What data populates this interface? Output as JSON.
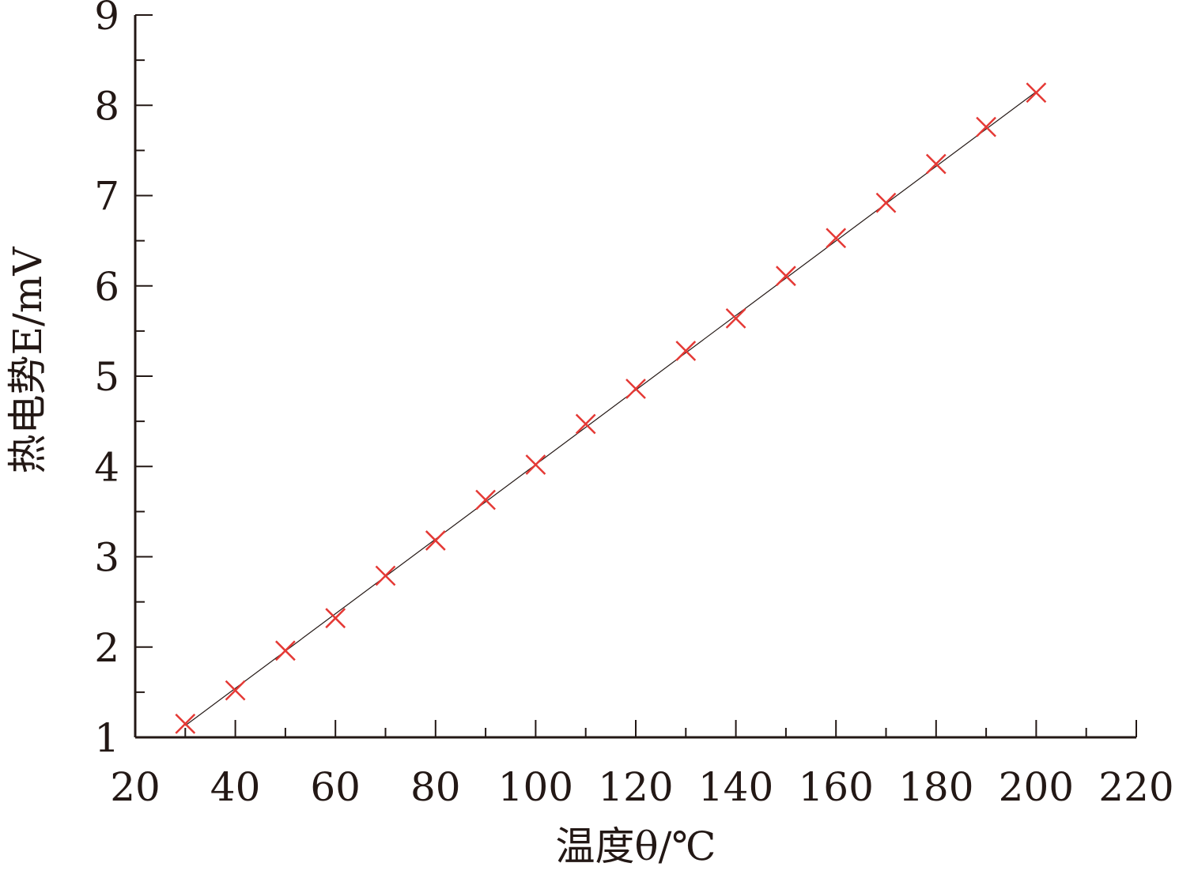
{
  "chart_data": {
    "type": "scatter",
    "title": "",
    "xlabel": "温度θ/℃",
    "ylabel": "热电势E/mV",
    "xlim": [
      20,
      220
    ],
    "ylim": [
      1,
      9
    ],
    "xticks": [
      20,
      40,
      60,
      80,
      100,
      120,
      140,
      160,
      180,
      200,
      220
    ],
    "yticks": [
      1,
      2,
      3,
      4,
      5,
      6,
      7,
      8,
      9
    ],
    "grid": false,
    "legend": "none",
    "colors": {
      "marker": "#e53935",
      "axis": "#231815",
      "fit_line": "#231815"
    },
    "series": [
      {
        "marker": "x",
        "x": [
          30,
          40,
          50,
          60,
          70,
          80,
          90,
          100,
          110,
          120,
          130,
          140,
          150,
          160,
          170,
          180,
          190,
          200
        ],
        "y": [
          1.15,
          1.52,
          1.96,
          2.32,
          2.79,
          3.18,
          3.63,
          4.02,
          4.47,
          4.86,
          5.28,
          5.64,
          6.11,
          6.53,
          6.92,
          7.35,
          7.76,
          8.14
        ]
      }
    ],
    "fit_line": {
      "x": [
        30,
        200
      ],
      "y": [
        1.13,
        8.15
      ]
    }
  }
}
